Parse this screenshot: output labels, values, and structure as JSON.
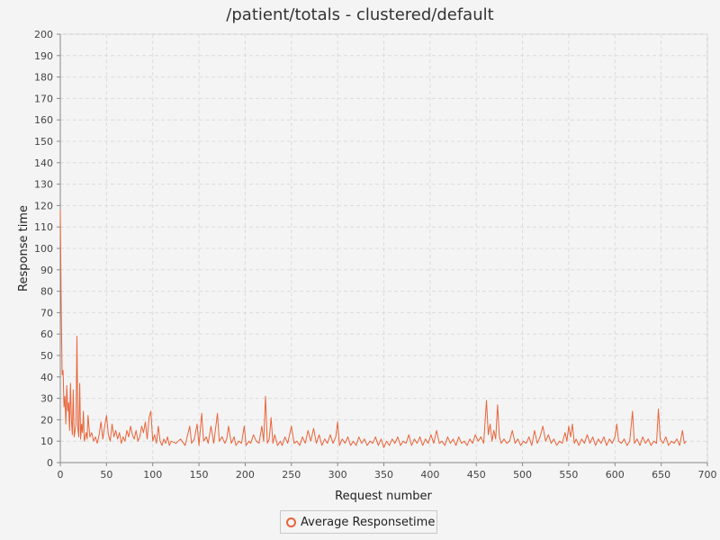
{
  "chart_data": {
    "type": "line",
    "title": "/patient/totals - clustered/default",
    "xlabel": "Request number",
    "ylabel": "Response time",
    "xlim": [
      0,
      700
    ],
    "ylim": [
      0,
      200
    ],
    "x_ticks": [
      0,
      50,
      100,
      150,
      200,
      250,
      300,
      350,
      400,
      450,
      500,
      550,
      600,
      650,
      700
    ],
    "y_ticks": [
      0,
      10,
      20,
      30,
      40,
      50,
      60,
      70,
      80,
      90,
      100,
      110,
      120,
      130,
      140,
      150,
      160,
      170,
      180,
      190,
      200
    ],
    "grid": true,
    "legend_position": "bottom-center",
    "series": [
      {
        "name": "Average Responsetime",
        "color": "#e8643a",
        "points": [
          [
            0,
            118
          ],
          [
            1,
            72
          ],
          [
            2,
            41
          ],
          [
            3,
            43
          ],
          [
            4,
            26
          ],
          [
            5,
            31
          ],
          [
            6,
            18
          ],
          [
            7,
            36
          ],
          [
            8,
            24
          ],
          [
            9,
            28
          ],
          [
            10,
            15
          ],
          [
            11,
            37
          ],
          [
            12,
            20
          ],
          [
            13,
            13
          ],
          [
            14,
            34
          ],
          [
            15,
            12
          ],
          [
            16,
            15
          ],
          [
            17,
            18
          ],
          [
            18,
            59
          ],
          [
            19,
            16
          ],
          [
            20,
            12
          ],
          [
            21,
            37
          ],
          [
            22,
            11
          ],
          [
            23,
            18
          ],
          [
            24,
            14
          ],
          [
            25,
            24
          ],
          [
            26,
            10
          ],
          [
            27,
            12
          ],
          [
            28,
            14
          ],
          [
            29,
            11
          ],
          [
            30,
            22
          ],
          [
            32,
            12
          ],
          [
            34,
            14
          ],
          [
            36,
            10
          ],
          [
            38,
            12
          ],
          [
            40,
            9
          ],
          [
            42,
            13
          ],
          [
            44,
            19
          ],
          [
            46,
            11
          ],
          [
            48,
            17
          ],
          [
            50,
            22
          ],
          [
            52,
            13
          ],
          [
            54,
            10
          ],
          [
            56,
            18
          ],
          [
            58,
            12
          ],
          [
            60,
            15
          ],
          [
            62,
            11
          ],
          [
            64,
            14
          ],
          [
            66,
            9
          ],
          [
            68,
            12
          ],
          [
            70,
            10
          ],
          [
            72,
            15
          ],
          [
            74,
            12
          ],
          [
            76,
            17
          ],
          [
            78,
            13
          ],
          [
            80,
            11
          ],
          [
            82,
            15
          ],
          [
            84,
            10
          ],
          [
            86,
            12
          ],
          [
            88,
            17
          ],
          [
            90,
            14
          ],
          [
            92,
            19
          ],
          [
            94,
            11
          ],
          [
            96,
            21
          ],
          [
            98,
            24
          ],
          [
            100,
            10
          ],
          [
            102,
            13
          ],
          [
            104,
            9
          ],
          [
            106,
            17
          ],
          [
            108,
            10
          ],
          [
            110,
            8
          ],
          [
            112,
            11
          ],
          [
            114,
            9
          ],
          [
            116,
            12
          ],
          [
            118,
            8
          ],
          [
            120,
            10
          ],
          [
            125,
            9
          ],
          [
            130,
            11
          ],
          [
            135,
            8
          ],
          [
            140,
            17
          ],
          [
            142,
            9
          ],
          [
            145,
            11
          ],
          [
            148,
            18
          ],
          [
            150,
            8
          ],
          [
            153,
            23
          ],
          [
            155,
            10
          ],
          [
            158,
            12
          ],
          [
            160,
            9
          ],
          [
            163,
            17
          ],
          [
            166,
            9
          ],
          [
            170,
            23
          ],
          [
            172,
            10
          ],
          [
            175,
            12
          ],
          [
            178,
            9
          ],
          [
            180,
            11
          ],
          [
            182,
            17
          ],
          [
            185,
            9
          ],
          [
            188,
            12
          ],
          [
            190,
            8
          ],
          [
            193,
            10
          ],
          [
            196,
            9
          ],
          [
            199,
            17
          ],
          [
            201,
            8
          ],
          [
            204,
            10
          ],
          [
            206,
            9
          ],
          [
            209,
            13
          ],
          [
            212,
            10
          ],
          [
            215,
            9
          ],
          [
            218,
            17
          ],
          [
            220,
            10
          ],
          [
            222,
            31
          ],
          [
            224,
            9
          ],
          [
            226,
            11
          ],
          [
            228,
            21
          ],
          [
            230,
            9
          ],
          [
            232,
            13
          ],
          [
            235,
            8
          ],
          [
            238,
            10
          ],
          [
            240,
            8
          ],
          [
            243,
            12
          ],
          [
            246,
            9
          ],
          [
            250,
            17
          ],
          [
            253,
            9
          ],
          [
            256,
            10
          ],
          [
            259,
            8
          ],
          [
            262,
            12
          ],
          [
            265,
            9
          ],
          [
            268,
            15
          ],
          [
            271,
            10
          ],
          [
            274,
            16
          ],
          [
            277,
            9
          ],
          [
            280,
            13
          ],
          [
            283,
            8
          ],
          [
            286,
            11
          ],
          [
            289,
            9
          ],
          [
            292,
            13
          ],
          [
            295,
            9
          ],
          [
            298,
            12
          ],
          [
            300,
            19
          ],
          [
            302,
            8
          ],
          [
            305,
            11
          ],
          [
            308,
            9
          ],
          [
            311,
            12
          ],
          [
            314,
            8
          ],
          [
            317,
            10
          ],
          [
            320,
            8
          ],
          [
            323,
            12
          ],
          [
            326,
            9
          ],
          [
            329,
            11
          ],
          [
            332,
            8
          ],
          [
            335,
            10
          ],
          [
            338,
            9
          ],
          [
            341,
            12
          ],
          [
            344,
            8
          ],
          [
            347,
            11
          ],
          [
            350,
            7
          ],
          [
            353,
            10
          ],
          [
            356,
            8
          ],
          [
            359,
            11
          ],
          [
            362,
            9
          ],
          [
            365,
            12
          ],
          [
            368,
            8
          ],
          [
            371,
            10
          ],
          [
            374,
            9
          ],
          [
            377,
            13
          ],
          [
            380,
            8
          ],
          [
            383,
            11
          ],
          [
            386,
            9
          ],
          [
            389,
            12
          ],
          [
            392,
            8
          ],
          [
            395,
            11
          ],
          [
            398,
            9
          ],
          [
            401,
            13
          ],
          [
            404,
            9
          ],
          [
            407,
            15
          ],
          [
            410,
            9
          ],
          [
            413,
            10
          ],
          [
            416,
            8
          ],
          [
            419,
            12
          ],
          [
            422,
            9
          ],
          [
            425,
            11
          ],
          [
            428,
            8
          ],
          [
            431,
            12
          ],
          [
            434,
            9
          ],
          [
            437,
            10
          ],
          [
            440,
            8
          ],
          [
            443,
            11
          ],
          [
            446,
            9
          ],
          [
            449,
            13
          ],
          [
            452,
            10
          ],
          [
            455,
            12
          ],
          [
            458,
            9
          ],
          [
            461,
            29
          ],
          [
            463,
            13
          ],
          [
            465,
            18
          ],
          [
            467,
            10
          ],
          [
            469,
            15
          ],
          [
            471,
            11
          ],
          [
            473,
            27
          ],
          [
            475,
            12
          ],
          [
            477,
            9
          ],
          [
            480,
            11
          ],
          [
            483,
            9
          ],
          [
            486,
            10
          ],
          [
            489,
            15
          ],
          [
            492,
            9
          ],
          [
            495,
            11
          ],
          [
            498,
            8
          ],
          [
            501,
            10
          ],
          [
            504,
            9
          ],
          [
            507,
            12
          ],
          [
            510,
            8
          ],
          [
            513,
            15
          ],
          [
            516,
            9
          ],
          [
            519,
            12
          ],
          [
            522,
            17
          ],
          [
            525,
            10
          ],
          [
            528,
            13
          ],
          [
            531,
            9
          ],
          [
            534,
            11
          ],
          [
            537,
            8
          ],
          [
            540,
            10
          ],
          [
            543,
            9
          ],
          [
            546,
            14
          ],
          [
            548,
            10
          ],
          [
            550,
            17
          ],
          [
            552,
            12
          ],
          [
            554,
            18
          ],
          [
            556,
            9
          ],
          [
            558,
            11
          ],
          [
            561,
            8
          ],
          [
            564,
            11
          ],
          [
            567,
            9
          ],
          [
            570,
            13
          ],
          [
            573,
            9
          ],
          [
            576,
            12
          ],
          [
            579,
            8
          ],
          [
            582,
            11
          ],
          [
            585,
            9
          ],
          [
            588,
            12
          ],
          [
            591,
            8
          ],
          [
            594,
            11
          ],
          [
            597,
            9
          ],
          [
            600,
            12
          ],
          [
            602,
            18
          ],
          [
            604,
            10
          ],
          [
            607,
            9
          ],
          [
            610,
            11
          ],
          [
            613,
            8
          ],
          [
            616,
            10
          ],
          [
            619,
            24
          ],
          [
            621,
            9
          ],
          [
            624,
            11
          ],
          [
            627,
            8
          ],
          [
            630,
            12
          ],
          [
            633,
            9
          ],
          [
            636,
            11
          ],
          [
            639,
            8
          ],
          [
            642,
            10
          ],
          [
            645,
            9
          ],
          [
            647,
            25
          ],
          [
            649,
            11
          ],
          [
            652,
            9
          ],
          [
            655,
            12
          ],
          [
            658,
            8
          ],
          [
            661,
            10
          ],
          [
            664,
            9
          ],
          [
            667,
            11
          ],
          [
            670,
            8
          ],
          [
            673,
            15
          ],
          [
            675,
            9
          ],
          [
            677,
            10
          ]
        ]
      }
    ]
  }
}
